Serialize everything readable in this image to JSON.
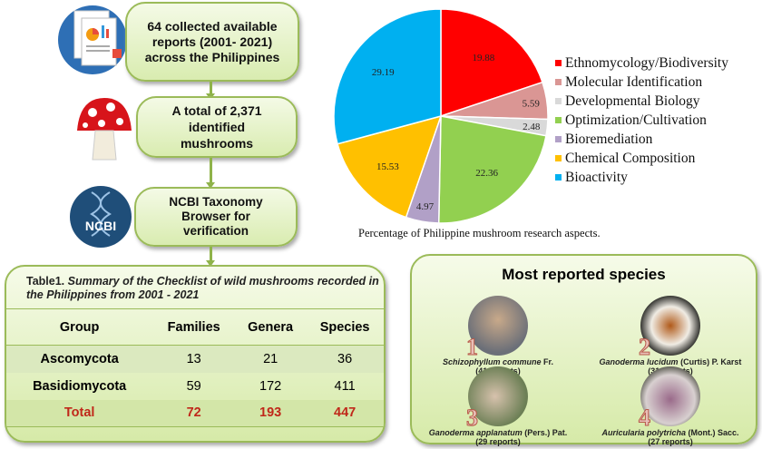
{
  "flow": {
    "step1": "64 collected available reports (2001- 2021) across the Philippines",
    "step2": "A total of 2,371 identified mushrooms",
    "step3": "NCBI Taxonomy Browser for verification",
    "ncbi_logo": "NCBI"
  },
  "table": {
    "caption_label": "Table1.",
    "caption_text": "Summary of the Checklist of wild mushrooms recorded in the Philippines from 2001 - 2021",
    "headers": [
      "Group",
      "Families",
      "Genera",
      "Species"
    ],
    "rows": [
      [
        "Ascomycota",
        "13",
        "21",
        "36"
      ],
      [
        "Basidiomycota",
        "59",
        "172",
        "411"
      ]
    ],
    "total": [
      "Total",
      "72",
      "193",
      "447"
    ]
  },
  "chart_data": {
    "type": "pie",
    "title": "",
    "caption": "Percentage  of Philippine mushroom research aspects.",
    "legend_position": "right",
    "start": "top, clockwise",
    "slices": [
      {
        "label": "Ethnomycology/Biodiversity",
        "value": 19.88,
        "color": "#ff0000"
      },
      {
        "label": "Molecular Identification",
        "value": 5.59,
        "color": "#da9694"
      },
      {
        "label": "Developmental Biology",
        "value": 2.48,
        "color": "#d9d9d9"
      },
      {
        "label": "Optimization/Cultivation",
        "value": 22.36,
        "color": "#92d050"
      },
      {
        "label": "Bioremediation",
        "value": 4.97,
        "color": "#b1a0c7"
      },
      {
        "label": "Chemical Composition",
        "value": 15.53,
        "color": "#ffc000"
      },
      {
        "label": "Bioactivity",
        "value": 29.19,
        "color": "#00b0f0"
      }
    ]
  },
  "species": {
    "title": "Most reported species",
    "items": [
      {
        "rank": "1",
        "name": "Schizophyllum commune",
        "author": " Fr.",
        "reports": "(41 reports)"
      },
      {
        "rank": "2",
        "name": "Ganoderma lucidum",
        "author": " (Curtis) P. Karst",
        "reports": "(31 reports)"
      },
      {
        "rank": "3",
        "name": "Ganoderma applanatum",
        "author": " (Pers.) Pat.",
        "reports": "(29 reports)"
      },
      {
        "rank": "4",
        "name": "Auricularia polytricha",
        "author": " (Mont.) Sacc.",
        "reports": "(27 reports)"
      }
    ]
  }
}
